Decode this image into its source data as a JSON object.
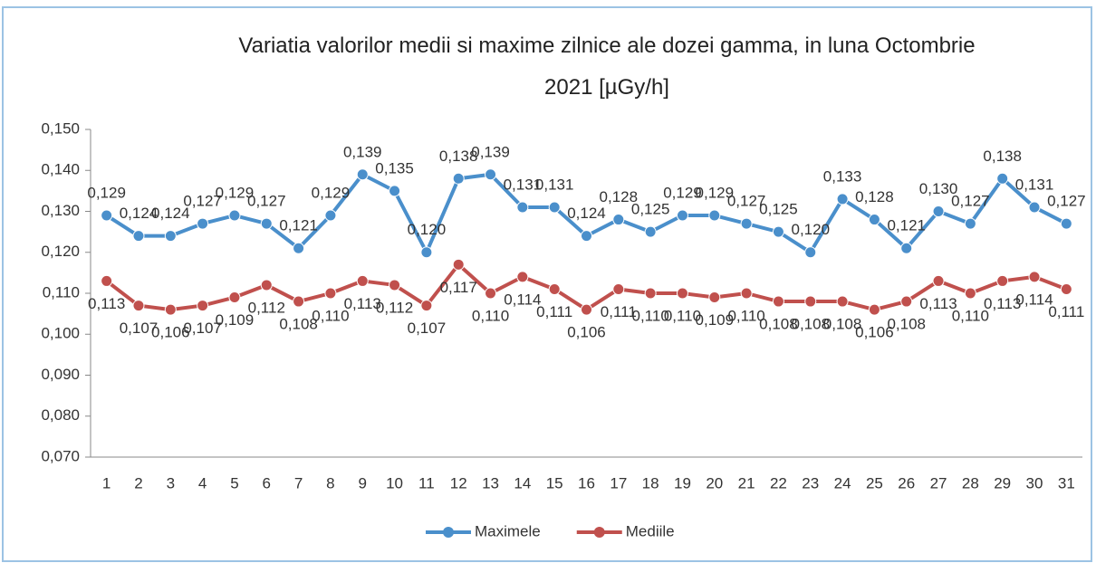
{
  "chart_data": {
    "type": "line",
    "title": "Variatia valorilor medii si maxime zilnice ale dozei gamma, in luna Octombrie 2021 [µGy/h]",
    "categories": [
      "1",
      "2",
      "3",
      "4",
      "5",
      "6",
      "7",
      "8",
      "9",
      "10",
      "11",
      "12",
      "13",
      "14",
      "15",
      "16",
      "17",
      "18",
      "19",
      "20",
      "21",
      "22",
      "23",
      "24",
      "25",
      "26",
      "27",
      "28",
      "29",
      "30",
      "31"
    ],
    "series": [
      {
        "name": "Maximele",
        "color": "#4a8fcb",
        "values": [
          0.129,
          0.124,
          0.124,
          0.127,
          0.129,
          0.127,
          0.121,
          0.129,
          0.139,
          0.135,
          0.12,
          0.138,
          0.139,
          0.131,
          0.131,
          0.124,
          0.128,
          0.125,
          0.129,
          0.129,
          0.127,
          0.125,
          0.12,
          0.133,
          0.128,
          0.121,
          0.13,
          0.127,
          0.138,
          0.131,
          0.127
        ],
        "value_labels": [
          "0,129",
          "0,124",
          "0,124",
          "0,127",
          "0,129",
          "0,127",
          "0,121",
          "0,129",
          "0,139",
          "0,135",
          "0,120",
          "0,138",
          "0,139",
          "0,131",
          "0,131",
          "0,124",
          "0,128",
          "0,125",
          "0,129",
          "0,129",
          "0,127",
          "0,125",
          "0,120",
          "0,133",
          "0,128",
          "0,121",
          "0,130",
          "0,127",
          "0,138",
          "0,131",
          "0,127"
        ]
      },
      {
        "name": "Mediile",
        "color": "#c0504d",
        "values": [
          0.113,
          0.107,
          0.106,
          0.107,
          0.109,
          0.112,
          0.108,
          0.11,
          0.113,
          0.112,
          0.107,
          0.117,
          0.11,
          0.114,
          0.111,
          0.106,
          0.111,
          0.11,
          0.11,
          0.109,
          0.11,
          0.108,
          0.108,
          0.108,
          0.106,
          0.108,
          0.113,
          0.11,
          0.113,
          0.114,
          0.111
        ],
        "value_labels": [
          "0,113",
          "0,107",
          "0,106",
          "0,107",
          "0,109",
          "0,112",
          "0,108",
          "0,110",
          "0,113",
          "0,112",
          "0,107",
          "0,117",
          "0,110",
          "0,114",
          "0,111",
          "0,106",
          "0,111",
          "0,110",
          "0,110",
          "0,109",
          "0,110",
          "0,108",
          "0,108",
          "0,108",
          "0,106",
          "0,108",
          "0,113",
          "0,110",
          "0,113",
          "0,114",
          "0,111"
        ]
      }
    ],
    "ylim": [
      0.07,
      0.15
    ],
    "yticks": [
      {
        "value": 0.07,
        "label": "0,070"
      },
      {
        "value": 0.08,
        "label": "0,080"
      },
      {
        "value": 0.09,
        "label": "0,090"
      },
      {
        "value": 0.1,
        "label": "0,100"
      },
      {
        "value": 0.11,
        "label": "0,110"
      },
      {
        "value": 0.12,
        "label": "0,120"
      },
      {
        "value": 0.13,
        "label": "0,130"
      },
      {
        "value": 0.14,
        "label": "0,140"
      },
      {
        "value": 0.15,
        "label": "0,150"
      }
    ],
    "grid": false,
    "legend": "bottom"
  }
}
